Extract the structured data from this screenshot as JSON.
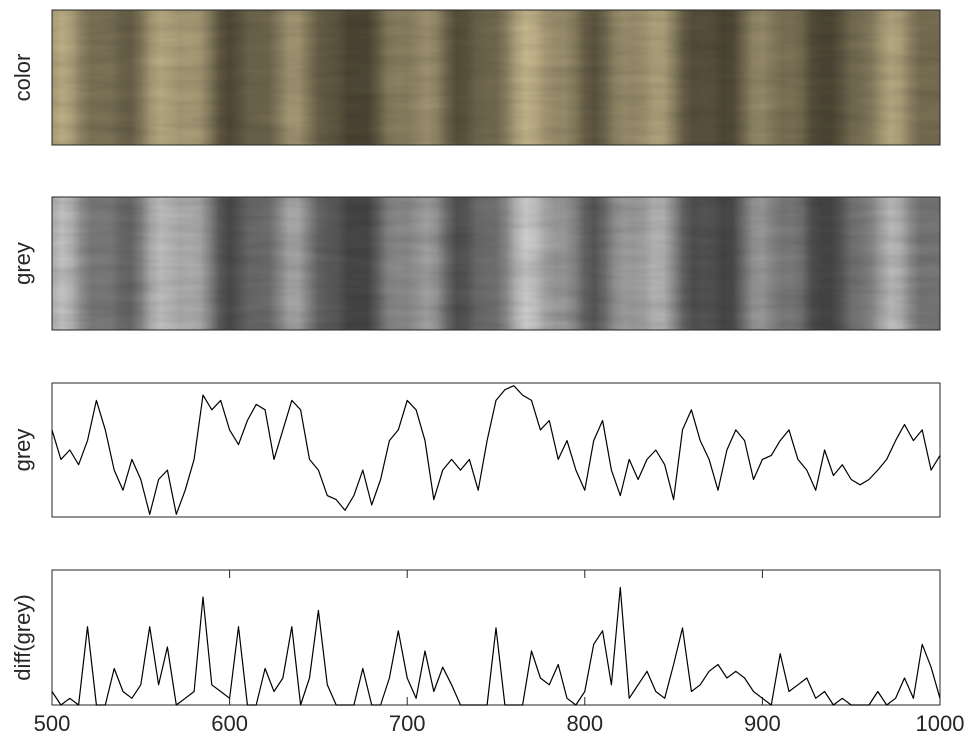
{
  "chart_data": [
    {
      "type": "image",
      "ylabel": "color",
      "palette": "color"
    },
    {
      "type": "image",
      "ylabel": "grey",
      "palette": "grey"
    },
    {
      "type": "line",
      "ylabel": "grey",
      "color": "#000000",
      "xlim": [
        500,
        1000
      ],
      "ylim": [
        0,
        1
      ],
      "x": [
        500,
        505,
        510,
        515,
        520,
        525,
        530,
        535,
        540,
        545,
        550,
        555,
        560,
        565,
        570,
        575,
        580,
        585,
        590,
        595,
        600,
        605,
        610,
        615,
        620,
        625,
        630,
        635,
        640,
        645,
        650,
        655,
        660,
        665,
        670,
        675,
        680,
        685,
        690,
        695,
        700,
        705,
        710,
        715,
        720,
        725,
        730,
        735,
        740,
        745,
        750,
        755,
        760,
        765,
        770,
        775,
        780,
        785,
        790,
        795,
        800,
        805,
        810,
        815,
        820,
        825,
        830,
        835,
        840,
        845,
        850,
        855,
        860,
        865,
        870,
        875,
        880,
        885,
        890,
        895,
        900,
        905,
        910,
        915,
        920,
        925,
        930,
        935,
        940,
        945,
        950,
        955,
        960,
        965,
        970,
        975,
        980,
        985,
        990,
        995,
        1000
      ],
      "values": [
        0.65,
        0.43,
        0.5,
        0.39,
        0.57,
        0.87,
        0.65,
        0.35,
        0.2,
        0.43,
        0.28,
        0.02,
        0.28,
        0.35,
        0.02,
        0.2,
        0.43,
        0.91,
        0.8,
        0.87,
        0.65,
        0.54,
        0.72,
        0.84,
        0.8,
        0.43,
        0.65,
        0.87,
        0.8,
        0.43,
        0.35,
        0.16,
        0.13,
        0.05,
        0.16,
        0.35,
        0.09,
        0.28,
        0.57,
        0.65,
        0.87,
        0.8,
        0.57,
        0.13,
        0.35,
        0.43,
        0.35,
        0.43,
        0.2,
        0.57,
        0.87,
        0.95,
        0.98,
        0.91,
        0.87,
        0.65,
        0.72,
        0.43,
        0.57,
        0.35,
        0.2,
        0.57,
        0.72,
        0.35,
        0.16,
        0.43,
        0.28,
        0.43,
        0.5,
        0.39,
        0.13,
        0.65,
        0.8,
        0.57,
        0.43,
        0.2,
        0.5,
        0.65,
        0.57,
        0.28,
        0.43,
        0.46,
        0.57,
        0.65,
        0.43,
        0.35,
        0.2,
        0.5,
        0.31,
        0.39,
        0.28,
        0.24,
        0.28,
        0.35,
        0.43,
        0.57,
        0.69,
        0.57,
        0.65,
        0.35,
        0.46
      ]
    },
    {
      "type": "line",
      "ylabel": "diff(grey)",
      "color": "#000000",
      "xlim": [
        500,
        1000
      ],
      "ylim": [
        0,
        1
      ],
      "xticks": [
        500,
        600,
        700,
        800,
        900,
        1000
      ],
      "x": [
        500,
        505,
        510,
        515,
        520,
        525,
        530,
        535,
        540,
        545,
        550,
        555,
        560,
        565,
        570,
        575,
        580,
        585,
        590,
        595,
        600,
        605,
        610,
        615,
        620,
        625,
        630,
        635,
        640,
        645,
        650,
        655,
        660,
        665,
        670,
        675,
        680,
        685,
        690,
        695,
        700,
        705,
        710,
        715,
        720,
        725,
        730,
        735,
        740,
        745,
        750,
        755,
        760,
        765,
        770,
        775,
        780,
        785,
        790,
        795,
        800,
        805,
        810,
        815,
        820,
        825,
        830,
        835,
        840,
        845,
        850,
        855,
        860,
        865,
        870,
        875,
        880,
        885,
        890,
        895,
        900,
        905,
        910,
        915,
        920,
        925,
        930,
        935,
        940,
        945,
        950,
        955,
        960,
        965,
        970,
        975,
        980,
        985,
        990,
        995,
        1000
      ],
      "values": [
        0.1,
        0,
        0.05,
        0,
        0.58,
        0,
        0,
        0.27,
        0.1,
        0.05,
        0.15,
        0.58,
        0.15,
        0.43,
        0,
        0.05,
        0.1,
        0.8,
        0.15,
        0.1,
        0.05,
        0.58,
        0,
        0,
        0.27,
        0.1,
        0.2,
        0.58,
        0,
        0.2,
        0.7,
        0.15,
        0,
        0,
        0,
        0.27,
        0,
        0,
        0.2,
        0.55,
        0.2,
        0.05,
        0.4,
        0.1,
        0.28,
        0.15,
        0,
        0,
        0,
        0,
        0.57,
        0,
        0,
        0,
        0.4,
        0.2,
        0.15,
        0.3,
        0.05,
        0,
        0.1,
        0.45,
        0.55,
        0.15,
        0.87,
        0.05,
        0.15,
        0.25,
        0.1,
        0.05,
        0.3,
        0.57,
        0.1,
        0.15,
        0.25,
        0.3,
        0.2,
        0.25,
        0.2,
        0.1,
        0.05,
        0,
        0.38,
        0.1,
        0.15,
        0.2,
        0.05,
        0.1,
        0,
        0.05,
        0,
        0,
        0,
        0.1,
        0,
        0.05,
        0.2,
        0.05,
        0.45,
        0.28,
        0.05
      ]
    }
  ]
}
